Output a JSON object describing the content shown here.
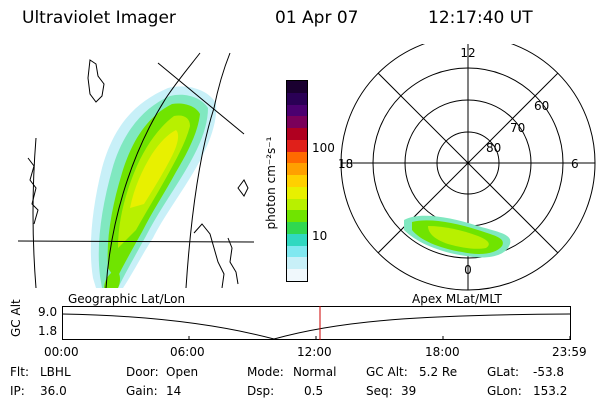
{
  "header": {
    "instrument": "Ultraviolet Imager",
    "date": "01 Apr 07",
    "time": "12:17:40 UT"
  },
  "colorbar": {
    "label": "photon cm⁻²s⁻¹",
    "ticks": [
      "100",
      "10"
    ],
    "colors": [
      "#1a0030",
      "#2a0055",
      "#4b0070",
      "#7a005a",
      "#b00020",
      "#e0201a",
      "#ff6a00",
      "#ffa000",
      "#ffd000",
      "#e8f000",
      "#b8f000",
      "#70e400",
      "#30d850",
      "#30d8c0",
      "#80e8f0",
      "#c8f0f8",
      "#f0f8fc"
    ]
  },
  "geo_map": {
    "label": "Geographic Lat/Lon"
  },
  "polar_plot": {
    "label": "Apex MLat/MLT",
    "mlt_labels": [
      "12",
      "18",
      "6",
      "0"
    ],
    "lat_labels": [
      "60",
      "70",
      "80"
    ]
  },
  "timeline": {
    "y_axis_label": "GC Alt",
    "y_ticks": [
      "9.0",
      "1.8"
    ],
    "x_ticks": [
      "00:00",
      "06:00",
      "12:00",
      "18:00",
      "23:59"
    ],
    "marker_color": "#cc0000"
  },
  "info": {
    "filter_label": "Flt:",
    "filter_value": "LBHL",
    "ip_label": "IP:",
    "ip_value": "36.0",
    "door_label": "Door:",
    "door_value": "Open",
    "gain_label": "Gain:",
    "gain_value": "14",
    "mode_label": "Mode:",
    "mode_value": "Normal",
    "dsp_label": "Dsp:",
    "dsp_value": "0.5",
    "gcalt_label": "GC Alt:",
    "gcalt_value": "5.2 Re",
    "seq_label": "Seq:",
    "seq_value": "39",
    "glat_label": "GLat:",
    "glat_value": "-53.8",
    "glon_label": "GLon:",
    "glon_value": "153.2"
  }
}
